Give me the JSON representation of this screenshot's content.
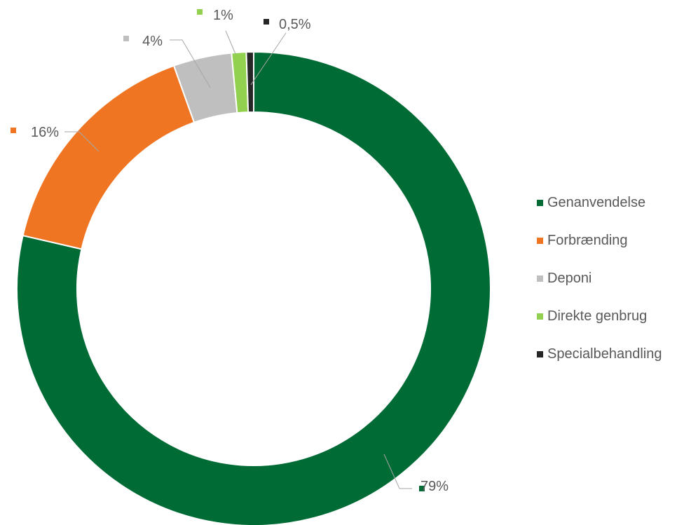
{
  "chart_data": {
    "type": "pie",
    "variant": "donut",
    "legend_position": "right",
    "slices": [
      {
        "name": "Genanvendelse",
        "value": 79,
        "label": "79%",
        "color": "#006B34"
      },
      {
        "name": "Forbrænding",
        "value": 16,
        "label": "16%",
        "color": "#F07523"
      },
      {
        "name": "Deponi",
        "value": 4,
        "label": "4%",
        "color": "#BFBFBF"
      },
      {
        "name": "Direkte genbrug",
        "value": 1,
        "label": "1%",
        "color": "#92D050"
      },
      {
        "name": "Specialbehandling",
        "value": 0.5,
        "label": "0,5%",
        "color": "#262626"
      }
    ]
  }
}
